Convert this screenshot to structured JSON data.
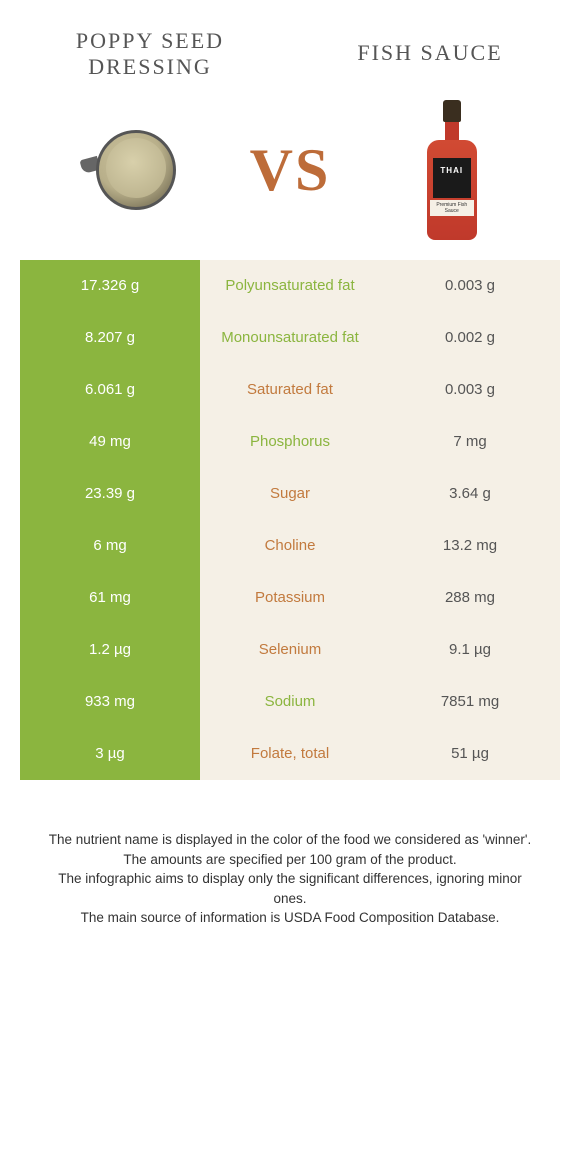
{
  "header": {
    "left_title_line1": "POPPY SEED",
    "left_title_line2": "DRESSING",
    "right_title": "FISH SAUCE",
    "vs": "VS",
    "bottle_label": "THAI",
    "bottle_sublabel": "Premium Fish Sauce"
  },
  "colors": {
    "left_bg": "#8bb53f",
    "right_bg": "#f5f0e6",
    "mid_bg": "#f5f0e6",
    "left_winner_text": "#8bb53f",
    "right_winner_text": "#c27a3e",
    "left_cell_text": "#ffffff",
    "right_cell_text": "#555555"
  },
  "rows": [
    {
      "left": "17.326 g",
      "nutrient": "Polyunsaturated fat",
      "right": "0.003 g",
      "winner": "left"
    },
    {
      "left": "8.207 g",
      "nutrient": "Monounsaturated fat",
      "right": "0.002 g",
      "winner": "left"
    },
    {
      "left": "6.061 g",
      "nutrient": "Saturated fat",
      "right": "0.003 g",
      "winner": "right"
    },
    {
      "left": "49 mg",
      "nutrient": "Phosphorus",
      "right": "7 mg",
      "winner": "left"
    },
    {
      "left": "23.39 g",
      "nutrient": "Sugar",
      "right": "3.64 g",
      "winner": "right"
    },
    {
      "left": "6 mg",
      "nutrient": "Choline",
      "right": "13.2 mg",
      "winner": "right"
    },
    {
      "left": "61 mg",
      "nutrient": "Potassium",
      "right": "288 mg",
      "winner": "right"
    },
    {
      "left": "1.2 µg",
      "nutrient": "Selenium",
      "right": "9.1 µg",
      "winner": "right"
    },
    {
      "left": "933 mg",
      "nutrient": "Sodium",
      "right": "7851 mg",
      "winner": "left"
    },
    {
      "left": "3 µg",
      "nutrient": "Folate, total",
      "right": "51 µg",
      "winner": "right"
    }
  ],
  "footer": {
    "line1": "The nutrient name is displayed in the color of the food we considered as 'winner'.",
    "line2": "The amounts are specified per 100 gram of the product.",
    "line3": "The infographic aims to display only the significant differences, ignoring minor ones.",
    "line4": "The main source of information is USDA Food Composition Database."
  }
}
